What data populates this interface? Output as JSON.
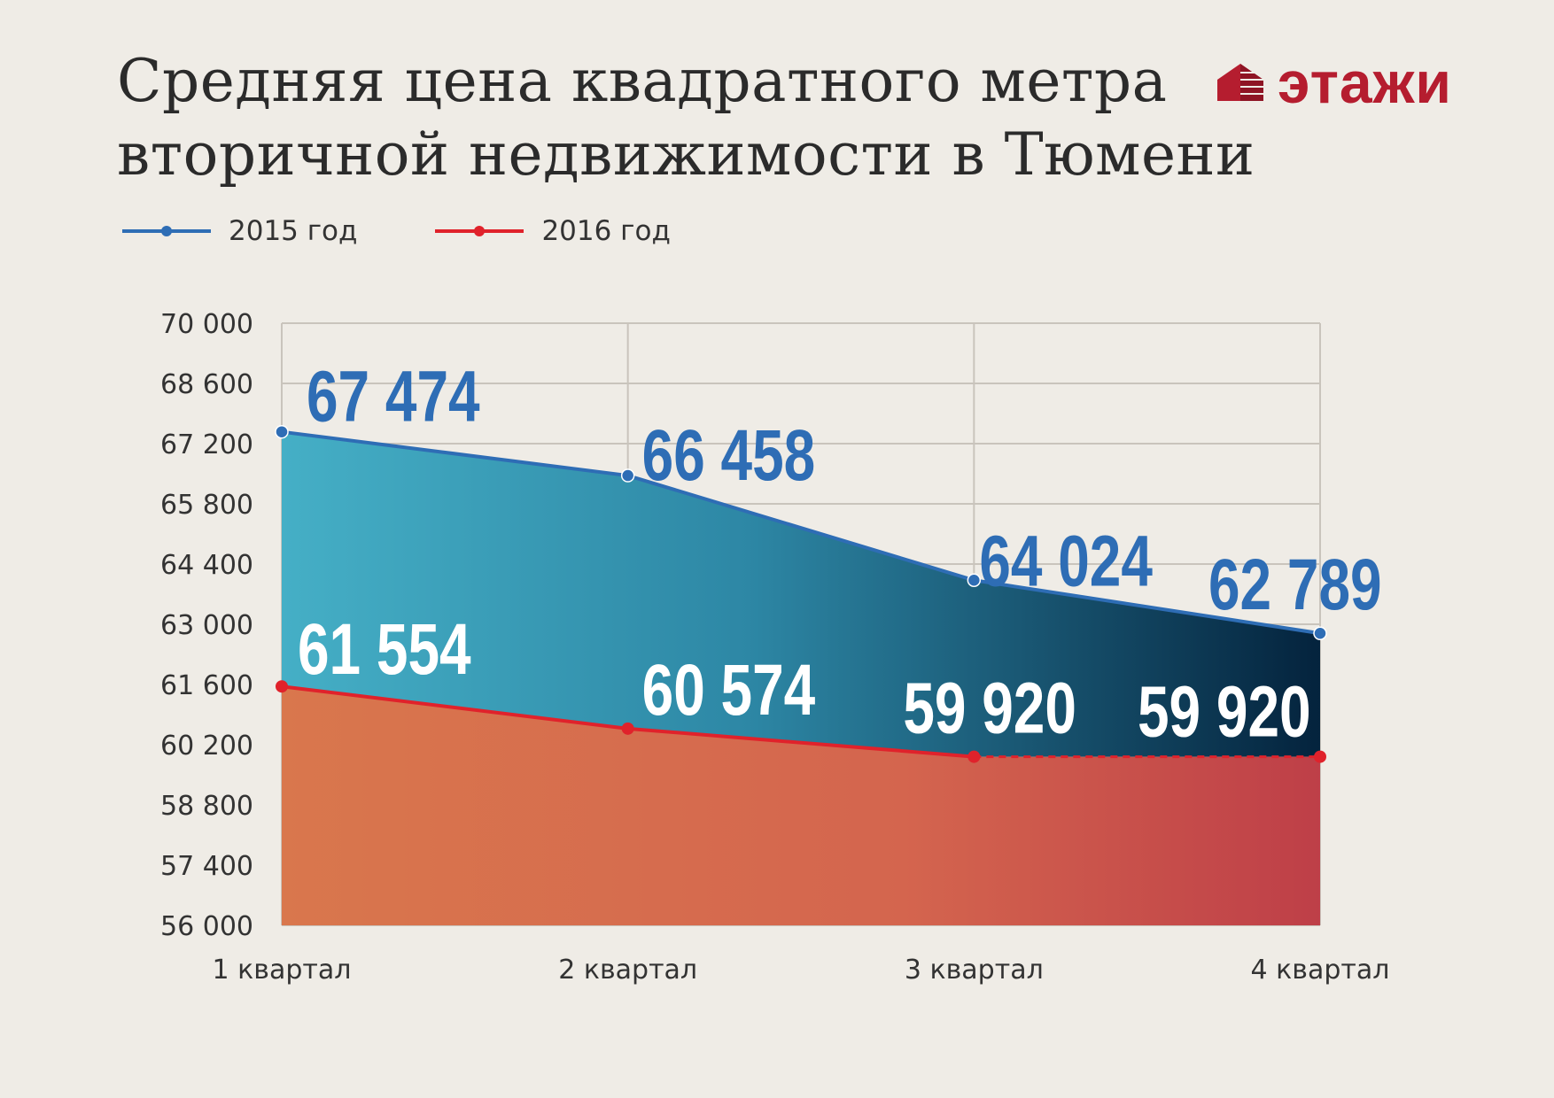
{
  "header": {
    "title_line1": "Средняя цена квадратного метра",
    "title_line2": "вторичной недвижимости в Тюмени"
  },
  "logo": {
    "text": "этажи",
    "icon": "building-icon",
    "color": "#b51d2f"
  },
  "chart_data": {
    "type": "area",
    "categories": [
      "1 квартал",
      "2 квартал",
      "3 квартал",
      "4 квартал"
    ],
    "ylim": [
      56000,
      70000
    ],
    "yticks": [
      56000,
      57400,
      58800,
      60200,
      61600,
      63000,
      64400,
      65800,
      67200,
      68600,
      70000
    ],
    "ytick_labels": [
      "56 000",
      "57 400",
      "58 800",
      "60 200",
      "61 600",
      "63 000",
      "64 400",
      "65 800",
      "67 200",
      "68 600",
      "70 000"
    ],
    "grid": true,
    "legend_position": "top-left",
    "series": [
      {
        "name": "2015 год",
        "values": [
          67474,
          66458,
          64024,
          62789
        ],
        "labels": [
          "67 474",
          "66 458",
          "64 024",
          "62 789"
        ],
        "color": "#2e6db5"
      },
      {
        "name": "2016 год",
        "values": [
          61554,
          60574,
          59920,
          59920
        ],
        "labels": [
          "61 554",
          "60 574",
          "59 920",
          "59 920"
        ],
        "color": "#e0222b",
        "dashed_last_segment": true
      }
    ]
  }
}
